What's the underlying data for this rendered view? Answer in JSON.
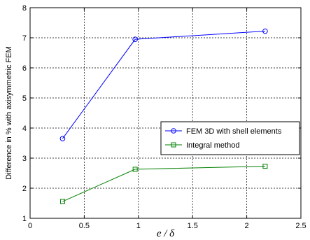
{
  "chart_data": {
    "type": "line",
    "xlabel": "e / δ",
    "ylabel": "Difference in % with axisymmetric FEM",
    "xlim": [
      0,
      2.5
    ],
    "ylim": [
      1,
      8
    ],
    "xticks": [
      "0",
      "0.5",
      "1",
      "1.5",
      "2",
      "2.5"
    ],
    "yticks": [
      "1",
      "2",
      "3",
      "4",
      "5",
      "6",
      "7",
      "8"
    ],
    "grid": true,
    "legend_position": "right",
    "series": [
      {
        "name": "FEM 3D with shell elements",
        "color": "#0000ff",
        "marker": "circle",
        "x": [
          0.3,
          0.97,
          2.17
        ],
        "y": [
          3.65,
          6.95,
          7.22
        ]
      },
      {
        "name": "Integral method",
        "color": "#008000",
        "marker": "square",
        "x": [
          0.3,
          0.97,
          2.17
        ],
        "y": [
          1.56,
          2.63,
          2.73
        ]
      }
    ]
  }
}
